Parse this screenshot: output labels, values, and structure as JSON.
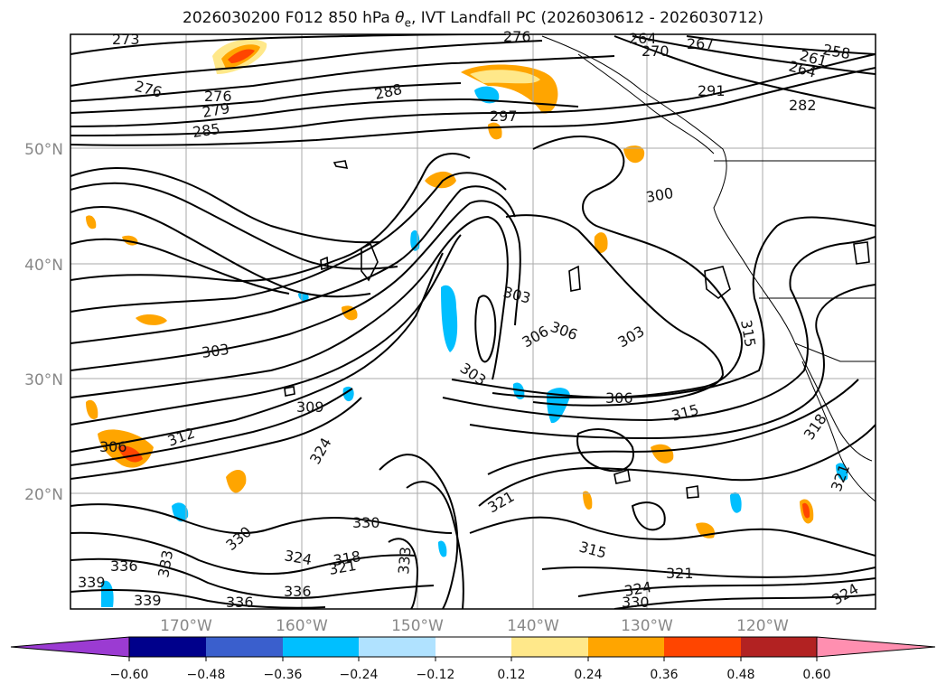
{
  "title": {
    "prefix": "2026030200 F012 850 hPa ",
    "theta": "θ",
    "theta_sub": "e",
    "suffix": ", IVT Landfall PC (2026030612 - 2026030712)"
  },
  "map": {
    "lat_labels": [
      "50°N",
      "40°N",
      "30°N",
      "20°N"
    ],
    "lon_labels": [
      "170°W",
      "160°W",
      "150°W",
      "140°W",
      "130°W",
      "120°W"
    ],
    "grid": true,
    "frame_color": "#000000"
  },
  "contour_labels": [
    "273",
    "276",
    "276",
    "279",
    "285",
    "288",
    "297",
    "276",
    "264",
    "270",
    "267",
    "261",
    "258",
    "264",
    "291",
    "282",
    "300",
    "303",
    "306",
    "306",
    "303",
    "303",
    "303",
    "306",
    "309",
    "315",
    "312",
    "306",
    "318",
    "315",
    "324",
    "321",
    "330",
    "330",
    "324",
    "318",
    "321",
    "333",
    "336",
    "339",
    "333",
    "336",
    "339",
    "336",
    "321",
    "315",
    "321",
    "324",
    "330",
    "324"
  ],
  "colorbar": {
    "ticks": [
      "−0.60",
      "−0.48",
      "−0.36",
      "−0.24",
      "−0.12",
      "0.12",
      "0.24",
      "0.36",
      "0.48",
      "0.60"
    ],
    "colors": [
      "#9b3bd2",
      "#00008b",
      "#3a5fcd",
      "#00bfff",
      "#b0e2ff",
      "#ffffff",
      "#ffe88a",
      "#ffa500",
      "#ff4500",
      "#b22222",
      "#ff8fb0"
    ]
  }
}
